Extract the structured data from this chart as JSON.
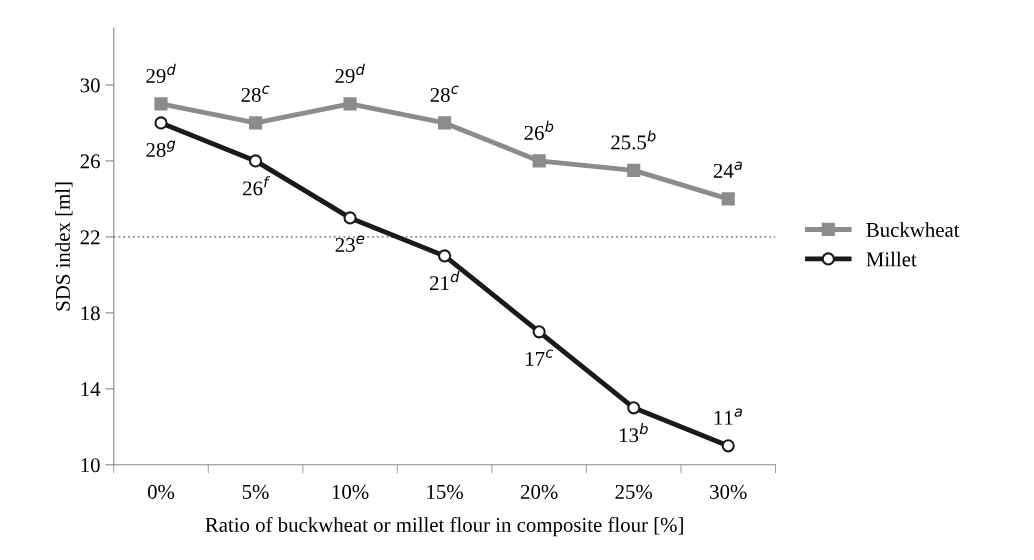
{
  "chart_data": {
    "type": "line",
    "xlabel": "Ratio of buckwheat or millet flour in composite flour [%]",
    "ylabel": "SDS index [ml]",
    "categories": [
      "0%",
      "5%",
      "10%",
      "15%",
      "20%",
      "25%",
      "30%"
    ],
    "series": [
      {
        "name": "Buckwheat",
        "color": "#8c8c8c",
        "marker": "square",
        "values": [
          29,
          28,
          29,
          28,
          26,
          25.5,
          24
        ],
        "value_labels": [
          "29$^{d}$",
          "28$^{c}$",
          "29$^{d}$",
          "28$^{c}$",
          "26$^{b}$",
          "25.5$^{b}$",
          "24$^{a}$"
        ]
      },
      {
        "name": "Millet",
        "color": "#1a1a1a",
        "marker": "circle",
        "values": [
          28,
          26,
          23,
          21,
          17,
          13,
          11
        ],
        "value_labels": [
          "28$^{g}$",
          "26$^{f}$",
          "23$^{e}$",
          "21$^{d}$",
          "17$^{c}$",
          "13$^{b}$",
          "11$^{a}$"
        ]
      }
    ],
    "ylim": [
      10,
      33
    ],
    "yticks": [
      10,
      14,
      18,
      22,
      26,
      30
    ],
    "ref_lines": [
      {
        "axis": "y",
        "value": 22,
        "color": "#8c8c8c",
        "line_style": "dotted"
      }
    ],
    "legend": "right",
    "grid": false,
    "line_style": "solid"
  }
}
